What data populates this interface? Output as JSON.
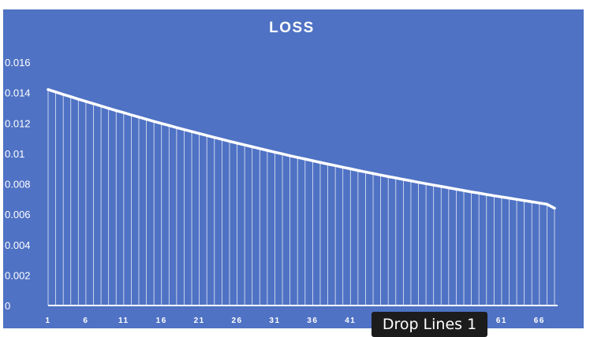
{
  "chart_data": {
    "type": "line",
    "title": "LOSS",
    "xlabel": "",
    "ylabel": "",
    "x_range": [
      1,
      68
    ],
    "ylim": [
      0,
      0.016
    ],
    "yticks": [
      {
        "value": 0,
        "label": "0"
      },
      {
        "value": 0.002,
        "label": "0.002"
      },
      {
        "value": 0.004,
        "label": "0.004"
      },
      {
        "value": 0.006,
        "label": "0.006"
      },
      {
        "value": 0.008,
        "label": "0.008"
      },
      {
        "value": 0.01,
        "label": "0.01"
      },
      {
        "value": 0.012,
        "label": "0.012"
      },
      {
        "value": 0.014,
        "label": "0.014"
      },
      {
        "value": 0.016,
        "label": "0.016"
      }
    ],
    "xticks": [
      1,
      6,
      11,
      16,
      21,
      26,
      31,
      36,
      41,
      46,
      51,
      56,
      61,
      66
    ],
    "series": [
      {
        "x": [
          1,
          2,
          3,
          4,
          5,
          6,
          7,
          8,
          9,
          10,
          11,
          12,
          13,
          14,
          15,
          16,
          17,
          18,
          19,
          20,
          21,
          22,
          23,
          24,
          25,
          26,
          27,
          28,
          29,
          30,
          31,
          32,
          33,
          34,
          35,
          36,
          37,
          38,
          39,
          40,
          41,
          42,
          43,
          44,
          45,
          46,
          47,
          48,
          49,
          50,
          51,
          52,
          53,
          54,
          55,
          56,
          57,
          58,
          59,
          60,
          61,
          62,
          63,
          64,
          65,
          66,
          67,
          68
        ],
        "values": [
          0.0142,
          0.01404,
          0.01388,
          0.01373,
          0.01357,
          0.01342,
          0.01327,
          0.01312,
          0.01297,
          0.01282,
          0.01268,
          0.01253,
          0.01239,
          0.01225,
          0.01211,
          0.01197,
          0.01184,
          0.0117,
          0.01157,
          0.01144,
          0.01131,
          0.01118,
          0.01105,
          0.01093,
          0.0108,
          0.01068,
          0.01056,
          0.01044,
          0.01032,
          0.0102,
          0.01008,
          0.00997,
          0.00985,
          0.00974,
          0.00963,
          0.00952,
          0.00941,
          0.0093,
          0.0092,
          0.00909,
          0.00899,
          0.00888,
          0.00878,
          0.00868,
          0.00858,
          0.00848,
          0.00839,
          0.00829,
          0.0082,
          0.0081,
          0.00801,
          0.00792,
          0.00783,
          0.00774,
          0.00765,
          0.00756,
          0.00747,
          0.00739,
          0.0073,
          0.00722,
          0.00714,
          0.00706,
          0.00698,
          0.0069,
          0.00682,
          0.00674,
          0.00666,
          0.0064
        ]
      }
    ],
    "drop_lines": true,
    "background_color": "#4f72c4",
    "line_color": "#ffffff",
    "grid": false
  },
  "tooltip": {
    "label": "Drop Lines 1"
  }
}
